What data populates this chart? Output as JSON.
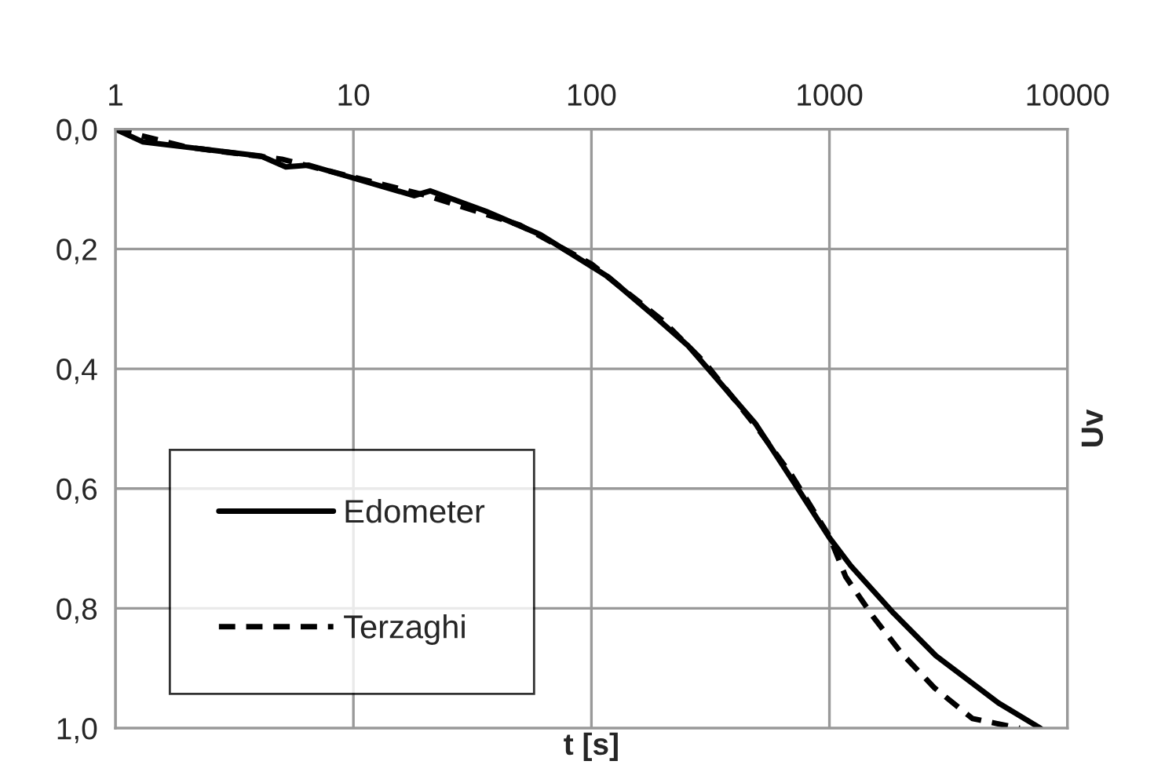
{
  "chart_data": {
    "type": "line",
    "xlabel": "t [s]",
    "ylabel": "Uv",
    "log": "x",
    "xlim": [
      1,
      10000
    ],
    "xticks": [
      1,
      10,
      100,
      1000,
      10000
    ],
    "ylim": [
      1.0,
      0.0
    ],
    "yticks": [
      {
        "value": 0.0,
        "label": "0,0"
      },
      {
        "value": 0.2,
        "label": "0,2"
      },
      {
        "value": 0.4,
        "label": "0,4"
      },
      {
        "value": 0.6,
        "label": "0,6"
      },
      {
        "value": 0.8,
        "label": "0,8"
      },
      {
        "value": 1.0,
        "label": "1,0"
      }
    ],
    "grid": true,
    "legend": "bottom left",
    "series": [
      {
        "name": "Edometer",
        "color": "#000000",
        "line_style": "solid",
        "x": [
          1,
          1.3,
          2.2,
          4.1,
          5.2,
          6.5,
          9.5,
          18,
          21,
          36,
          61,
          100,
          118,
          179,
          254,
          330,
          490,
          707,
          1000,
          1230,
          1860,
          2800,
          5130,
          7700
        ],
        "values": [
          0,
          0.021,
          0.032,
          0.045,
          0.063,
          0.06,
          0.079,
          0.111,
          0.103,
          0.137,
          0.176,
          0.229,
          0.247,
          0.308,
          0.361,
          0.413,
          0.492,
          0.589,
          0.682,
          0.729,
          0.808,
          0.879,
          0.958,
          1.0
        ]
      },
      {
        "name": "Terzaghi",
        "color": "#000000",
        "line_style": "dashed",
        "x": [
          1,
          2,
          5,
          10,
          20,
          50,
          100,
          200,
          300,
          500,
          700,
          1000,
          1170,
          1520,
          2000,
          2750,
          3990,
          6300
        ],
        "values": [
          0,
          0.03,
          0.05,
          0.08,
          0.11,
          0.16,
          0.225,
          0.32,
          0.39,
          0.5,
          0.58,
          0.68,
          0.747,
          0.813,
          0.874,
          0.932,
          0.984,
          1.0
        ]
      }
    ]
  }
}
